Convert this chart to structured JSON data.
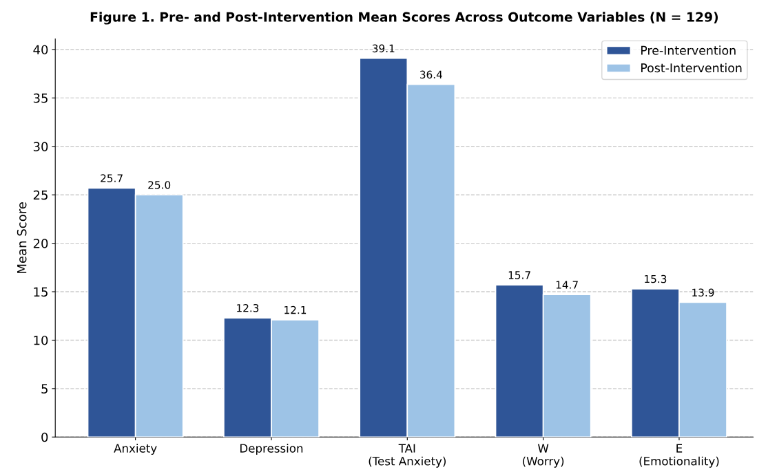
{
  "chart_data": {
    "type": "bar",
    "title": "Figure 1. Pre- and Post-Intervention Mean Scores Across Outcome Variables (N = 129)",
    "ylabel": "Mean Score",
    "categories": [
      "Anxiety",
      "Depression",
      "TAI\n(Test Anxiety)",
      "W\n(Worry)",
      "E\n(Emotionality)"
    ],
    "series": [
      {
        "name": "Pre-Intervention",
        "color": "#2f5597",
        "values": [
          25.7,
          12.3,
          39.1,
          15.7,
          15.3
        ],
        "value_labels": [
          "25.7",
          "12.3",
          "39.1",
          "15.7",
          "15.3"
        ]
      },
      {
        "name": "Post-Intervention",
        "color": "#9dc3e6",
        "values": [
          25.0,
          12.1,
          36.4,
          14.7,
          13.9
        ],
        "value_labels": [
          "25.0",
          "12.1",
          "36.4",
          "14.7",
          "13.9"
        ]
      }
    ],
    "ylim": [
      0,
      41.1
    ],
    "yticks": [
      0,
      5,
      10,
      15,
      20,
      25,
      30,
      35,
      40
    ],
    "grid": "y",
    "legend": "top right"
  }
}
